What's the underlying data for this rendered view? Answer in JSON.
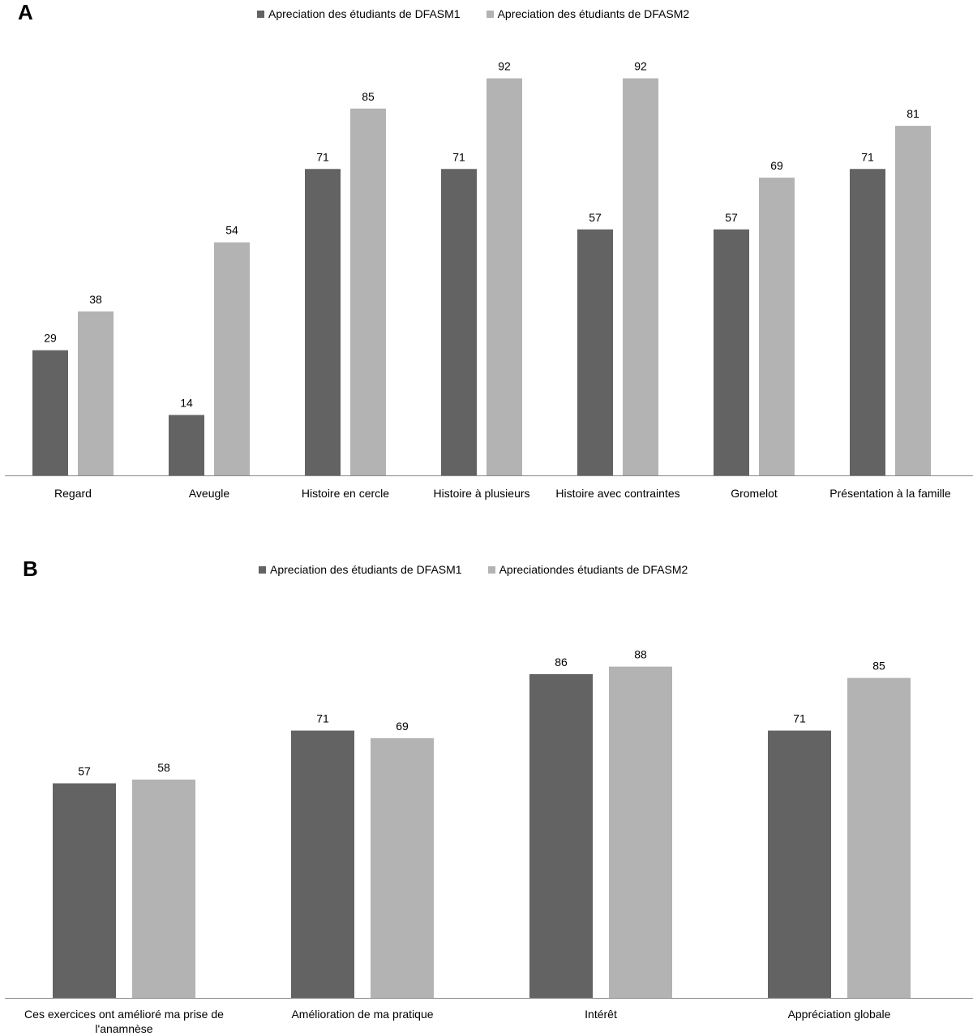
{
  "chart_data": [
    {
      "type": "bar",
      "panel_label": "A",
      "categories": [
        "Regard",
        "Aveugle",
        "Histoire en cercle",
        "Histoire à plusieurs",
        "Histoire avec contraintes",
        "Gromelot",
        "Présentation à la famille"
      ],
      "series": [
        {
          "name": "Apreciation des étudiants de DFASM1",
          "color": "#636363",
          "values": [
            29,
            14,
            71,
            71,
            57,
            57,
            71
          ]
        },
        {
          "name": "Apreciation des étudiants de DFASM2",
          "color": "#b3b3b3",
          "values": [
            38,
            54,
            85,
            92,
            92,
            69,
            81
          ]
        }
      ],
      "legend_position": "top-center",
      "ylim": [
        0,
        100
      ],
      "grid": false
    },
    {
      "type": "bar",
      "panel_label": "B",
      "categories": [
        "Ces exercices ont amélioré ma prise de l'anamnèse",
        "Amélioration de ma pratique",
        "Intérêt",
        "Appréciation globale"
      ],
      "series": [
        {
          "name": "Apreciation des étudiants de DFASM1",
          "color": "#636363",
          "values": [
            57,
            71,
            86,
            71
          ]
        },
        {
          "name": "Apreciationdes étudiants de DFASM2",
          "color": "#b3b3b3",
          "values": [
            58,
            69,
            88,
            85
          ]
        }
      ],
      "legend_position": "top-center",
      "ylim": [
        0,
        100
      ],
      "grid": false
    }
  ]
}
